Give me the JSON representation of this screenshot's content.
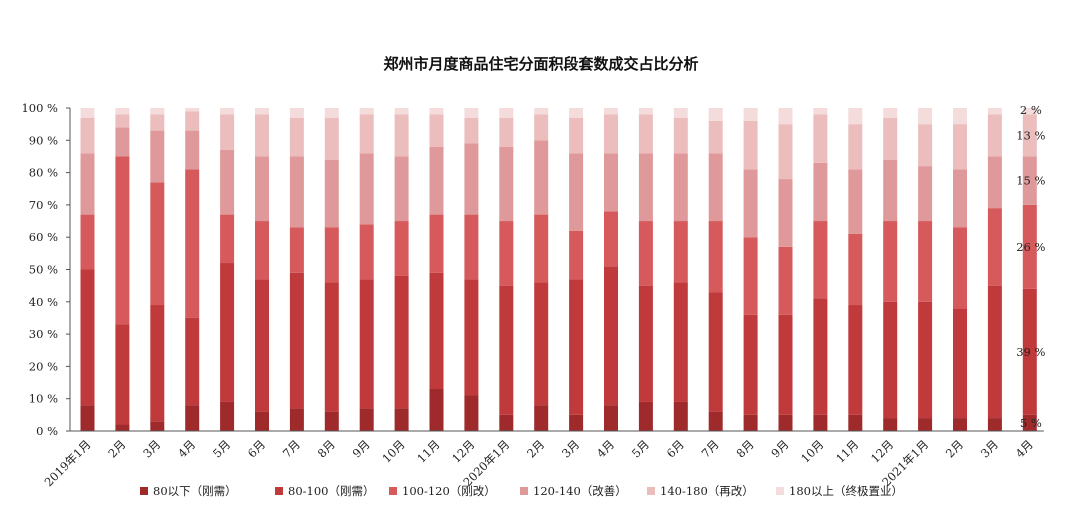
{
  "chart_data": {
    "type": "bar",
    "stacked": true,
    "title": "郑州市月度商品住宅分面积段套数成交占比分析",
    "categories": [
      "2019年1月",
      "2月",
      "3月",
      "4月",
      "5月",
      "6月",
      "7月",
      "8月",
      "9月",
      "10月",
      "11月",
      "12月",
      "2020年1月",
      "2月",
      "3月",
      "4月",
      "5月",
      "6月",
      "7月",
      "8月",
      "9月",
      "10月",
      "11月",
      "12月",
      "2021年1月",
      "2月",
      "3月",
      "4月"
    ],
    "series": [
      {
        "name": "80以下（刚需）",
        "color": "#9e2a2b",
        "values": [
          8,
          2,
          3,
          8,
          9,
          6,
          7,
          6,
          7,
          7,
          13,
          11,
          5,
          8,
          5,
          8,
          9,
          9,
          6,
          5,
          5,
          5,
          5,
          4,
          4,
          4,
          4,
          5
        ]
      },
      {
        "name": "80-100（刚需）",
        "color": "#c0393b",
        "values": [
          42,
          31,
          36,
          27,
          43,
          41,
          42,
          40,
          40,
          41,
          36,
          36,
          40,
          38,
          42,
          43,
          36,
          37,
          37,
          31,
          31,
          36,
          34,
          36,
          36,
          34,
          41,
          39
        ]
      },
      {
        "name": "100-120（刚改）",
        "color": "#d65a5c",
        "values": [
          17,
          52,
          38,
          46,
          15,
          18,
          14,
          17,
          17,
          17,
          18,
          20,
          20,
          21,
          15,
          17,
          20,
          19,
          22,
          24,
          21,
          24,
          22,
          25,
          25,
          25,
          24,
          26
        ]
      },
      {
        "name": "120-140（改善）",
        "color": "#e0999a",
        "values": [
          19,
          9,
          16,
          12,
          20,
          20,
          22,
          21,
          22,
          20,
          21,
          22,
          23,
          23,
          24,
          18,
          21,
          21,
          21,
          21,
          21,
          18,
          20,
          19,
          17,
          18,
          16,
          15
        ]
      },
      {
        "name": "140-180（再改）",
        "color": "#ecbdbd",
        "values": [
          11,
          4,
          5,
          6,
          11,
          13,
          12,
          13,
          12,
          13,
          10,
          8,
          9,
          8,
          11,
          12,
          12,
          11,
          10,
          15,
          17,
          15,
          14,
          13,
          13,
          14,
          13,
          13
        ]
      },
      {
        "name": "180以上（终极置业）",
        "color": "#f4dcdc",
        "values": [
          3,
          2,
          2,
          1,
          2,
          2,
          3,
          3,
          2,
          2,
          2,
          3,
          3,
          2,
          3,
          2,
          2,
          3,
          4,
          4,
          5,
          2,
          5,
          3,
          5,
          5,
          2,
          2
        ]
      }
    ],
    "data_labels": [
      "5 %",
      "39 %",
      "26 %",
      "15 %",
      "13 %",
      "2 %"
    ],
    "ylim": [
      0,
      100
    ],
    "yticks": [
      "0 %",
      "10 %",
      "20 %",
      "30 %",
      "40 %",
      "50 %",
      "60 %",
      "70 %",
      "80 %",
      "90 %",
      "100 %"
    ],
    "legend_position": "bottom",
    "grid": false
  }
}
